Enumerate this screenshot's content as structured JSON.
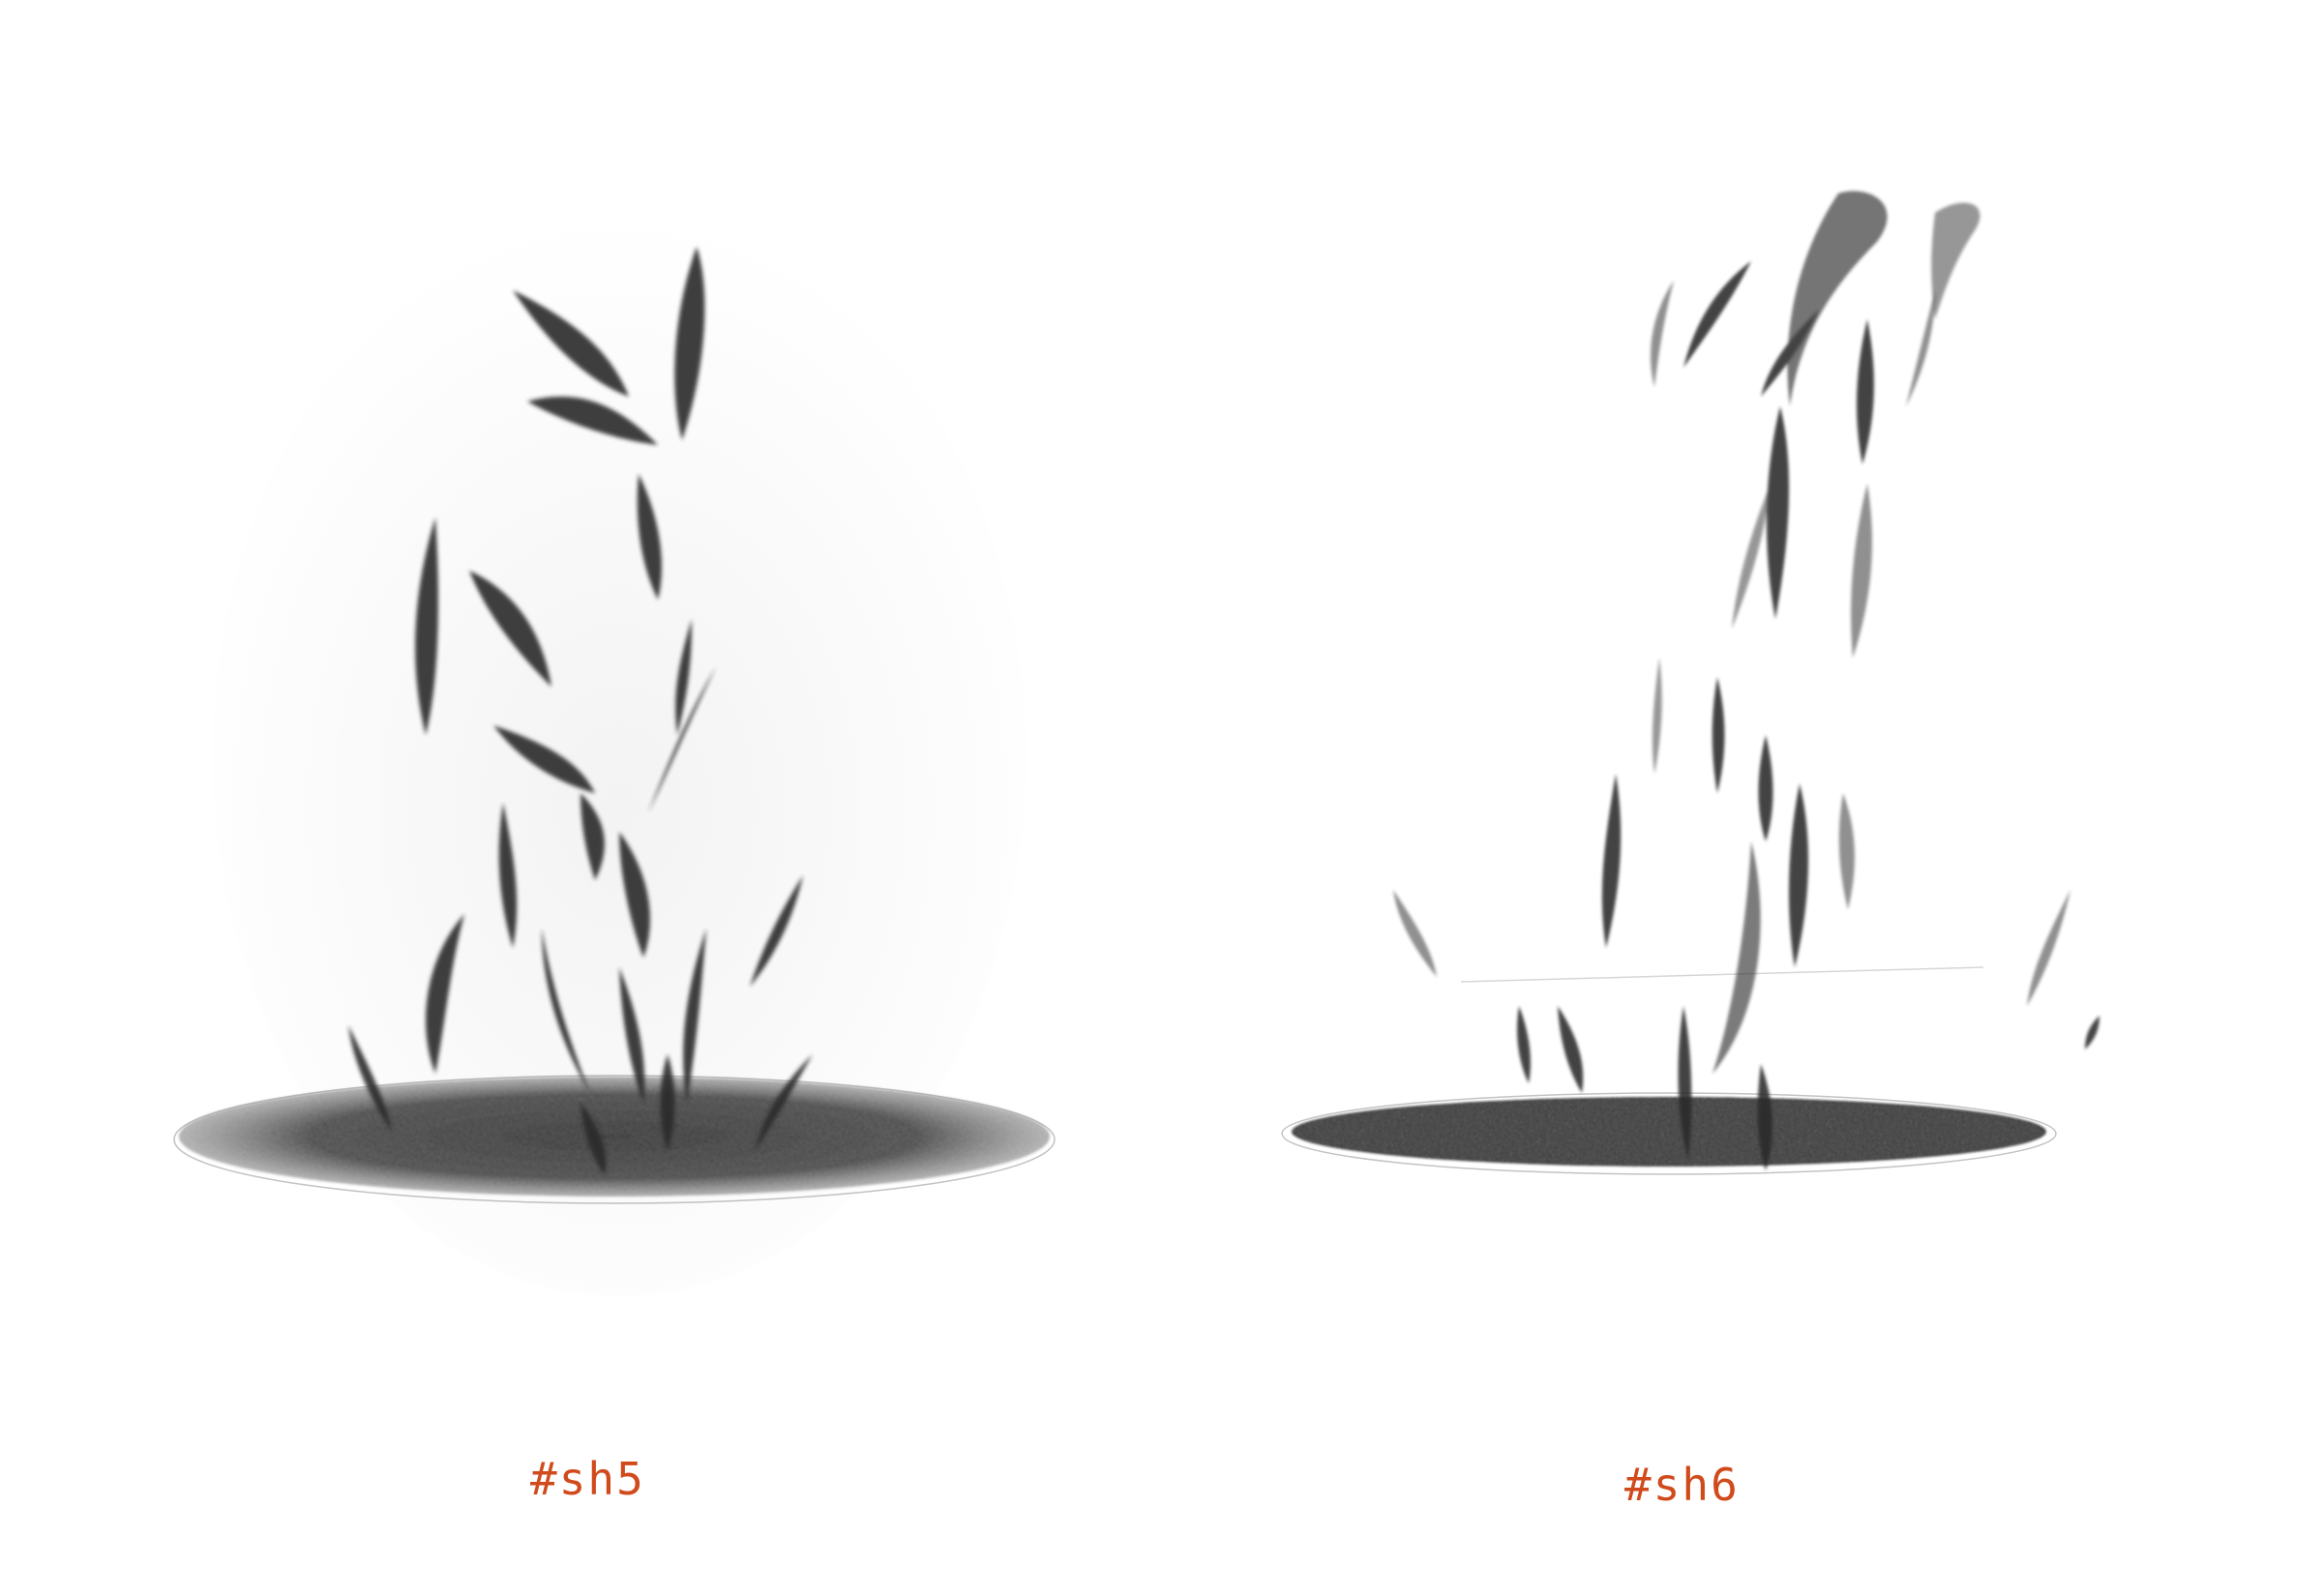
{
  "captions": {
    "left": "#sh5",
    "right": "#sh6"
  },
  "sketches": {
    "left": {
      "icon": "fish-school-rising-from-hole-sketch"
    },
    "right": {
      "icon": "fish-school-rising-from-hole-sketch"
    }
  },
  "colors": {
    "caption": "#d04a1c",
    "graphite": "#1a1a1a",
    "paper": "#ffffff"
  }
}
